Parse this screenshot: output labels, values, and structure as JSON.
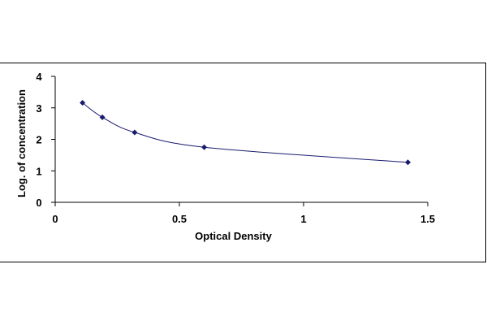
{
  "chart_data": {
    "type": "scatter",
    "title": "",
    "xlabel": "Optical Density",
    "ylabel": "Log. of concentration",
    "xlim": [
      0,
      1.5
    ],
    "ylim": [
      0,
      4
    ],
    "x_ticks": [
      0,
      0.5,
      1,
      1.5
    ],
    "y_ticks": [
      0,
      1,
      2,
      3,
      4
    ],
    "grid": false,
    "legend": "none",
    "marker": "diamond",
    "marker_color": "#1a1a6e",
    "line_color": "#1a1a6e",
    "trend_line": "smooth-curve",
    "series": [
      {
        "x": [
          0.11,
          0.19,
          0.32,
          0.6,
          1.42
        ],
        "y": [
          3.16,
          2.7,
          2.22,
          1.75,
          1.27
        ]
      }
    ]
  }
}
